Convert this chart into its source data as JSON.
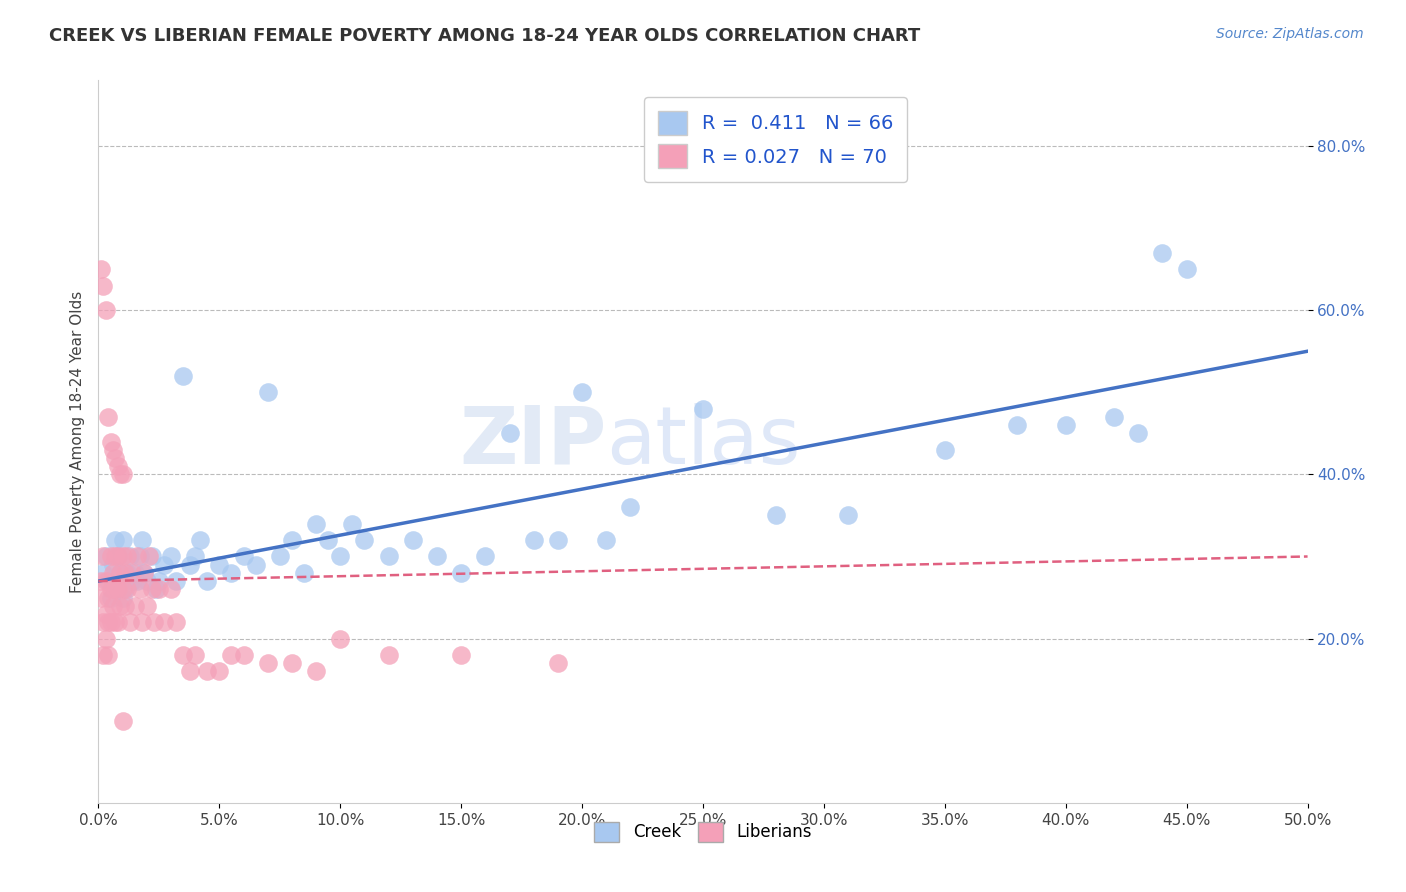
{
  "title": "CREEK VS LIBERIAN FEMALE POVERTY AMONG 18-24 YEAR OLDS CORRELATION CHART",
  "source_text": "Source: ZipAtlas.com",
  "ylabel": "Female Poverty Among 18-24 Year Olds",
  "xlim": [
    0.0,
    0.5
  ],
  "ylim": [
    0.0,
    0.88
  ],
  "xtick_labels": [
    "0.0%",
    "5.0%",
    "10.0%",
    "15.0%",
    "20.0%",
    "25.0%",
    "30.0%",
    "35.0%",
    "40.0%",
    "45.0%",
    "50.0%"
  ],
  "xtick_values": [
    0.0,
    0.05,
    0.1,
    0.15,
    0.2,
    0.25,
    0.3,
    0.35,
    0.4,
    0.45,
    0.5
  ],
  "ytick_labels": [
    "20.0%",
    "40.0%",
    "60.0%",
    "80.0%"
  ],
  "ytick_values": [
    0.2,
    0.4,
    0.6,
    0.8
  ],
  "creek_color": "#a8c8f0",
  "liberian_color": "#f4a0b8",
  "creek_line_color": "#4472c4",
  "liberian_line_color": "#e06080",
  "creek_R": 0.411,
  "creek_N": 66,
  "liberian_R": 0.027,
  "liberian_N": 70,
  "watermark_zip": "ZIP",
  "watermark_atlas": "atlas",
  "legend_color": "#2255cc",
  "creek_x": [
    0.002,
    0.003,
    0.004,
    0.005,
    0.006,
    0.007,
    0.008,
    0.008,
    0.009,
    0.01,
    0.01,
    0.011,
    0.012,
    0.013,
    0.014,
    0.015,
    0.016,
    0.017,
    0.018,
    0.019,
    0.02,
    0.022,
    0.024,
    0.025,
    0.027,
    0.03,
    0.032,
    0.035,
    0.038,
    0.04,
    0.042,
    0.045,
    0.05,
    0.055,
    0.06,
    0.065,
    0.07,
    0.075,
    0.08,
    0.085,
    0.09,
    0.095,
    0.1,
    0.105,
    0.11,
    0.12,
    0.13,
    0.14,
    0.15,
    0.16,
    0.17,
    0.18,
    0.19,
    0.2,
    0.21,
    0.22,
    0.25,
    0.28,
    0.31,
    0.35,
    0.38,
    0.4,
    0.42,
    0.43,
    0.44,
    0.45
  ],
  "creek_y": [
    0.28,
    0.3,
    0.27,
    0.25,
    0.29,
    0.32,
    0.27,
    0.3,
    0.28,
    0.25,
    0.32,
    0.26,
    0.28,
    0.3,
    0.27,
    0.28,
    0.27,
    0.3,
    0.32,
    0.28,
    0.27,
    0.3,
    0.26,
    0.27,
    0.29,
    0.3,
    0.27,
    0.52,
    0.29,
    0.3,
    0.32,
    0.27,
    0.29,
    0.28,
    0.3,
    0.29,
    0.5,
    0.3,
    0.32,
    0.28,
    0.34,
    0.32,
    0.3,
    0.34,
    0.32,
    0.3,
    0.32,
    0.3,
    0.28,
    0.3,
    0.45,
    0.32,
    0.32,
    0.5,
    0.32,
    0.36,
    0.48,
    0.35,
    0.35,
    0.43,
    0.46,
    0.46,
    0.47,
    0.45,
    0.67,
    0.65
  ],
  "liberian_x": [
    0.001,
    0.001,
    0.002,
    0.002,
    0.002,
    0.003,
    0.003,
    0.003,
    0.004,
    0.004,
    0.004,
    0.005,
    0.005,
    0.005,
    0.006,
    0.006,
    0.007,
    0.007,
    0.007,
    0.008,
    0.008,
    0.008,
    0.009,
    0.009,
    0.01,
    0.01,
    0.01,
    0.011,
    0.011,
    0.012,
    0.012,
    0.013,
    0.014,
    0.015,
    0.016,
    0.017,
    0.018,
    0.019,
    0.02,
    0.021,
    0.022,
    0.023,
    0.025,
    0.027,
    0.03,
    0.032,
    0.035,
    0.038,
    0.04,
    0.045,
    0.05,
    0.055,
    0.06,
    0.07,
    0.08,
    0.09,
    0.1,
    0.12,
    0.15,
    0.19,
    0.001,
    0.002,
    0.003,
    0.004,
    0.005,
    0.006,
    0.007,
    0.008,
    0.009,
    0.01
  ],
  "liberian_y": [
    0.27,
    0.25,
    0.3,
    0.22,
    0.18,
    0.27,
    0.23,
    0.2,
    0.25,
    0.22,
    0.18,
    0.3,
    0.26,
    0.22,
    0.28,
    0.24,
    0.3,
    0.26,
    0.22,
    0.3,
    0.26,
    0.22,
    0.28,
    0.24,
    0.3,
    0.26,
    0.1,
    0.28,
    0.24,
    0.3,
    0.26,
    0.22,
    0.28,
    0.24,
    0.3,
    0.26,
    0.22,
    0.28,
    0.24,
    0.3,
    0.26,
    0.22,
    0.26,
    0.22,
    0.26,
    0.22,
    0.18,
    0.16,
    0.18,
    0.16,
    0.16,
    0.18,
    0.18,
    0.17,
    0.17,
    0.16,
    0.2,
    0.18,
    0.18,
    0.17,
    0.65,
    0.63,
    0.6,
    0.47,
    0.44,
    0.43,
    0.42,
    0.41,
    0.4,
    0.4
  ]
}
